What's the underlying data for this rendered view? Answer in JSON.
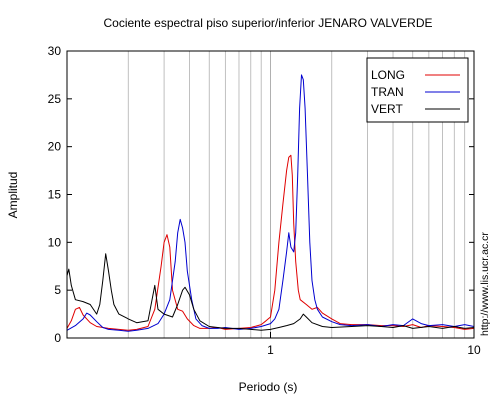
{
  "chart_data": {
    "type": "line",
    "title": "Cociente espectral piso superior/inferior  JENARO VALVERDE",
    "xlabel": "Periodo (s)",
    "ylabel": "Amplitud",
    "x_scale": "log",
    "xlim": [
      0.1,
      10
    ],
    "ylim": [
      0,
      30
    ],
    "x_tick_labels": [
      {
        "value": 1,
        "label": "1"
      },
      {
        "value": 10,
        "label": "10"
      }
    ],
    "y_ticks": [
      0,
      5,
      10,
      15,
      20,
      25,
      30
    ],
    "grid": {
      "x_minor_log": true,
      "y": false
    },
    "legend_position": "top-right",
    "watermark": "http://www.lis.ucr.ac.cr",
    "series": [
      {
        "name": "LONG",
        "color": "#e00000",
        "points": [
          [
            0.1,
            1.0
          ],
          [
            0.105,
            1.8
          ],
          [
            0.11,
            3.0
          ],
          [
            0.115,
            3.2
          ],
          [
            0.12,
            2.4
          ],
          [
            0.13,
            1.6
          ],
          [
            0.14,
            1.2
          ],
          [
            0.16,
            1.0
          ],
          [
            0.18,
            0.9
          ],
          [
            0.2,
            0.8
          ],
          [
            0.22,
            0.9
          ],
          [
            0.25,
            1.2
          ],
          [
            0.27,
            3.0
          ],
          [
            0.29,
            7.5
          ],
          [
            0.3,
            10.0
          ],
          [
            0.31,
            10.8
          ],
          [
            0.32,
            9.5
          ],
          [
            0.33,
            5.0
          ],
          [
            0.35,
            3.0
          ],
          [
            0.37,
            2.8
          ],
          [
            0.39,
            2.0
          ],
          [
            0.42,
            1.3
          ],
          [
            0.45,
            1.0
          ],
          [
            0.5,
            1.0
          ],
          [
            0.55,
            1.1
          ],
          [
            0.6,
            0.9
          ],
          [
            0.7,
            1.0
          ],
          [
            0.8,
            1.1
          ],
          [
            0.9,
            1.4
          ],
          [
            0.95,
            1.8
          ],
          [
            1.0,
            2.2
          ],
          [
            1.05,
            5.0
          ],
          [
            1.1,
            10.0
          ],
          [
            1.15,
            14.0
          ],
          [
            1.2,
            17.5
          ],
          [
            1.23,
            18.9
          ],
          [
            1.26,
            19.1
          ],
          [
            1.28,
            17.0
          ],
          [
            1.3,
            12.0
          ],
          [
            1.33,
            8.0
          ],
          [
            1.37,
            5.0
          ],
          [
            1.4,
            4.0
          ],
          [
            1.5,
            3.5
          ],
          [
            1.6,
            3.0
          ],
          [
            1.7,
            3.2
          ],
          [
            1.8,
            2.6
          ],
          [
            2.0,
            2.0
          ],
          [
            2.2,
            1.5
          ],
          [
            2.5,
            1.4
          ],
          [
            3,
            1.4
          ],
          [
            3.5,
            1.3
          ],
          [
            4,
            1.3
          ],
          [
            4.5,
            1.2
          ],
          [
            5,
            1.4
          ],
          [
            5.5,
            1.1
          ],
          [
            6,
            1.3
          ],
          [
            7,
            1.2
          ],
          [
            8,
            1.1
          ],
          [
            9,
            0.9
          ],
          [
            10,
            1.0
          ]
        ]
      },
      {
        "name": "TRAN",
        "color": "#0000d0",
        "points": [
          [
            0.1,
            0.8
          ],
          [
            0.11,
            1.3
          ],
          [
            0.12,
            2.0
          ],
          [
            0.125,
            2.6
          ],
          [
            0.13,
            2.4
          ],
          [
            0.14,
            1.7
          ],
          [
            0.15,
            1.1
          ],
          [
            0.16,
            0.9
          ],
          [
            0.18,
            0.8
          ],
          [
            0.2,
            0.7
          ],
          [
            0.22,
            0.8
          ],
          [
            0.25,
            1.0
          ],
          [
            0.28,
            1.5
          ],
          [
            0.3,
            2.5
          ],
          [
            0.32,
            4.0
          ],
          [
            0.34,
            8.0
          ],
          [
            0.35,
            11.0
          ],
          [
            0.36,
            12.4
          ],
          [
            0.37,
            11.5
          ],
          [
            0.38,
            10.0
          ],
          [
            0.39,
            7.0
          ],
          [
            0.41,
            4.0
          ],
          [
            0.43,
            2.0
          ],
          [
            0.46,
            1.3
          ],
          [
            0.5,
            1.0
          ],
          [
            0.55,
            1.0
          ],
          [
            0.6,
            1.1
          ],
          [
            0.7,
            0.9
          ],
          [
            0.8,
            1.0
          ],
          [
            0.9,
            1.2
          ],
          [
            1.0,
            1.5
          ],
          [
            1.05,
            2.0
          ],
          [
            1.1,
            3.0
          ],
          [
            1.15,
            6.0
          ],
          [
            1.2,
            9.0
          ],
          [
            1.23,
            11.0
          ],
          [
            1.26,
            9.5
          ],
          [
            1.3,
            9.0
          ],
          [
            1.33,
            11.0
          ],
          [
            1.36,
            17.0
          ],
          [
            1.39,
            24.0
          ],
          [
            1.42,
            27.5
          ],
          [
            1.45,
            27.0
          ],
          [
            1.48,
            24.0
          ],
          [
            1.52,
            17.0
          ],
          [
            1.56,
            10.0
          ],
          [
            1.6,
            6.0
          ],
          [
            1.65,
            4.0
          ],
          [
            1.7,
            3.0
          ],
          [
            1.8,
            2.2
          ],
          [
            2.0,
            1.7
          ],
          [
            2.2,
            1.4
          ],
          [
            2.5,
            1.3
          ],
          [
            3,
            1.4
          ],
          [
            3.5,
            1.2
          ],
          [
            4,
            1.4
          ],
          [
            4.5,
            1.3
          ],
          [
            5,
            2.0
          ],
          [
            5.5,
            1.5
          ],
          [
            6,
            1.3
          ],
          [
            7,
            1.4
          ],
          [
            8,
            1.2
          ],
          [
            9,
            1.4
          ],
          [
            10,
            1.2
          ]
        ]
      },
      {
        "name": "VERT",
        "color": "#000000",
        "points": [
          [
            0.1,
            6.5
          ],
          [
            0.102,
            7.2
          ],
          [
            0.105,
            5.5
          ],
          [
            0.11,
            4.0
          ],
          [
            0.12,
            3.8
          ],
          [
            0.13,
            3.5
          ],
          [
            0.14,
            2.5
          ],
          [
            0.145,
            3.5
          ],
          [
            0.15,
            6.0
          ],
          [
            0.155,
            8.8
          ],
          [
            0.16,
            7.0
          ],
          [
            0.165,
            5.0
          ],
          [
            0.17,
            3.5
          ],
          [
            0.18,
            2.5
          ],
          [
            0.2,
            2.0
          ],
          [
            0.22,
            1.6
          ],
          [
            0.25,
            1.8
          ],
          [
            0.27,
            5.5
          ],
          [
            0.28,
            3.0
          ],
          [
            0.3,
            2.5
          ],
          [
            0.33,
            2.2
          ],
          [
            0.35,
            3.5
          ],
          [
            0.37,
            5.0
          ],
          [
            0.38,
            5.3
          ],
          [
            0.4,
            4.5
          ],
          [
            0.42,
            3.0
          ],
          [
            0.45,
            1.8
          ],
          [
            0.5,
            1.2
          ],
          [
            0.55,
            1.1
          ],
          [
            0.6,
            1.0
          ],
          [
            0.7,
            1.0
          ],
          [
            0.8,
            0.9
          ],
          [
            0.9,
            0.8
          ],
          [
            1.0,
            0.9
          ],
          [
            1.1,
            1.1
          ],
          [
            1.2,
            1.3
          ],
          [
            1.3,
            1.5
          ],
          [
            1.4,
            2.0
          ],
          [
            1.45,
            2.5
          ],
          [
            1.5,
            2.2
          ],
          [
            1.6,
            1.6
          ],
          [
            1.8,
            1.2
          ],
          [
            2.0,
            1.1
          ],
          [
            2.5,
            1.2
          ],
          [
            3,
            1.3
          ],
          [
            3.5,
            1.2
          ],
          [
            4,
            1.1
          ],
          [
            4.5,
            1.3
          ],
          [
            5,
            1.0
          ],
          [
            6,
            1.2
          ],
          [
            7,
            1.0
          ],
          [
            8,
            1.2
          ],
          [
            9,
            1.0
          ],
          [
            10,
            1.1
          ]
        ]
      }
    ]
  }
}
